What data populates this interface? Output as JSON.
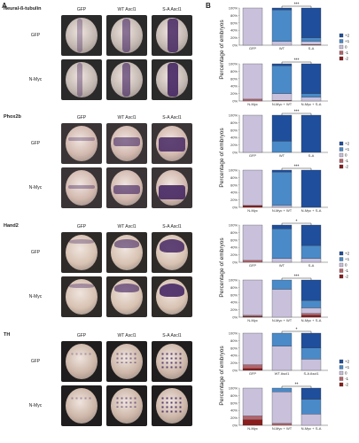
{
  "panel_a_label": "A",
  "panel_b_label": "B",
  "y_axis_label": "Percentage of embryos",
  "groups": [
    {
      "name": "Neural-ß-tubulin",
      "cols": [
        "GFP",
        "WT Ascl1",
        "S-A Ascl1"
      ],
      "rows": [
        "GFP",
        "N-Myc"
      ]
    },
    {
      "name": "Phox2b",
      "cols": [
        "GFP",
        "WT Ascl1",
        "S-A Ascl1"
      ],
      "rows": [
        "GFP",
        "N-Myc"
      ]
    },
    {
      "name": "Hand2",
      "cols": [
        "GFP",
        "WT Ascl1",
        "S-A Ascl1"
      ],
      "rows": [
        "GFP",
        "N-Myc"
      ]
    },
    {
      "name": "TH",
      "cols": [
        "GFP",
        "WT Ascl1",
        "S-A Ascl1"
      ],
      "rows": [
        "GFP",
        "N-Myc"
      ]
    }
  ],
  "legend_groups": [
    {
      "entries": [
        "+2",
        "+1",
        "0",
        "-1",
        "-2"
      ]
    },
    {
      "entries": [
        "+2",
        "+1",
        "0",
        "-1",
        "-2"
      ]
    },
    {
      "entries": [
        "+2",
        "+1",
        "0",
        "-1",
        "-2"
      ]
    },
    {
      "entries": [
        "+2",
        "+1",
        "0",
        "-1",
        "-2"
      ]
    }
  ],
  "colors": {
    "+2": "#1f4e9c",
    "+1": "#4a8ac8",
    "0": "#c9c0dc",
    "-1": "#b5636a",
    "-2": "#8a1d1d"
  },
  "chart_data": [
    {
      "type": "bar",
      "stacked": true,
      "categories": [
        "GFP",
        "WT",
        "S-A"
      ],
      "significance": "***",
      "ylim": [
        0,
        100
      ],
      "yticks": [
        "0%",
        "20%",
        "40%",
        "60%",
        "80%",
        "100%"
      ],
      "series": [
        {
          "name": "+2",
          "values": [
            0,
            5,
            80
          ]
        },
        {
          "name": "+1",
          "values": [
            0,
            85,
            10
          ]
        },
        {
          "name": "0",
          "values": [
            100,
            10,
            8
          ]
        },
        {
          "name": "-1",
          "values": [
            0,
            0,
            2
          ]
        },
        {
          "name": "-2",
          "values": [
            0,
            0,
            0
          ]
        }
      ]
    },
    {
      "type": "bar",
      "stacked": true,
      "categories": [
        "N-Myc",
        "N-Myc + WT",
        "N-Myc + S-A"
      ],
      "significance": "***",
      "ylim": [
        0,
        100
      ],
      "yticks": [
        "0%",
        "20%",
        "40%",
        "60%",
        "80%",
        "100%"
      ],
      "series": [
        {
          "name": "+2",
          "values": [
            0,
            5,
            80
          ]
        },
        {
          "name": "+1",
          "values": [
            0,
            75,
            10
          ]
        },
        {
          "name": "0",
          "values": [
            95,
            18,
            10
          ]
        },
        {
          "name": "-1",
          "values": [
            5,
            2,
            0
          ]
        },
        {
          "name": "-2",
          "values": [
            0,
            0,
            0
          ]
        }
      ]
    },
    {
      "type": "bar",
      "stacked": true,
      "categories": [
        "GFP",
        "WT",
        "S-A"
      ],
      "significance": "***",
      "ylim": [
        0,
        100
      ],
      "yticks": [
        "0%",
        "20%",
        "40%",
        "60%",
        "80%",
        "100%"
      ],
      "series": [
        {
          "name": "+2",
          "values": [
            0,
            70,
            100
          ]
        },
        {
          "name": "+1",
          "values": [
            0,
            30,
            0
          ]
        },
        {
          "name": "0",
          "values": [
            100,
            0,
            0
          ]
        },
        {
          "name": "-1",
          "values": [
            0,
            0,
            0
          ]
        },
        {
          "name": "-2",
          "values": [
            0,
            0,
            0
          ]
        }
      ]
    },
    {
      "type": "bar",
      "stacked": true,
      "categories": [
        "N-Myc",
        "N-Myc + WT",
        "N-Myc + S-A"
      ],
      "significance": "***",
      "ylim": [
        0,
        100
      ],
      "yticks": [
        "0%",
        "20%",
        "40%",
        "60%",
        "80%",
        "100%"
      ],
      "series": [
        {
          "name": "+2",
          "values": [
            0,
            5,
            100
          ]
        },
        {
          "name": "+1",
          "values": [
            0,
            90,
            0
          ]
        },
        {
          "name": "0",
          "values": [
            95,
            5,
            0
          ]
        },
        {
          "name": "-1",
          "values": [
            0,
            0,
            0
          ]
        },
        {
          "name": "-2",
          "values": [
            5,
            0,
            0
          ]
        }
      ]
    },
    {
      "type": "bar",
      "stacked": true,
      "categories": [
        "GFP",
        "WT",
        "S-A"
      ],
      "significance": "*",
      "ylim": [
        0,
        100
      ],
      "yticks": [
        "0%",
        "20%",
        "40%",
        "60%",
        "80%",
        "100%"
      ],
      "series": [
        {
          "name": "+2",
          "values": [
            0,
            10,
            55
          ]
        },
        {
          "name": "+1",
          "values": [
            0,
            80,
            35
          ]
        },
        {
          "name": "0",
          "values": [
            95,
            10,
            10
          ]
        },
        {
          "name": "-1",
          "values": [
            5,
            0,
            0
          ]
        },
        {
          "name": "-2",
          "values": [
            0,
            0,
            0
          ]
        }
      ]
    },
    {
      "type": "bar",
      "stacked": true,
      "categories": [
        "N-Myc",
        "N-Myc + WT",
        "N-Myc + S-A"
      ],
      "significance": "***",
      "ylim": [
        0,
        100
      ],
      "yticks": [
        "0%",
        "20%",
        "40%",
        "60%",
        "80%",
        "100%"
      ],
      "series": [
        {
          "name": "+2",
          "values": [
            0,
            0,
            55
          ]
        },
        {
          "name": "+1",
          "values": [
            0,
            25,
            20
          ]
        },
        {
          "name": "0",
          "values": [
            95,
            75,
            15
          ]
        },
        {
          "name": "-1",
          "values": [
            3,
            0,
            5
          ]
        },
        {
          "name": "-2",
          "values": [
            2,
            0,
            5
          ]
        }
      ]
    },
    {
      "type": "bar",
      "stacked": true,
      "categories": [
        "GFP",
        "WT Ascl1",
        "S-A Ascl1"
      ],
      "significance": "*",
      "ylim": [
        0,
        100
      ],
      "yticks": [
        "0%",
        "20%",
        "40%",
        "60%",
        "80%",
        "100%"
      ],
      "series": [
        {
          "name": "+2",
          "values": [
            0,
            0,
            40
          ]
        },
        {
          "name": "+1",
          "values": [
            0,
            35,
            30
          ]
        },
        {
          "name": "0",
          "values": [
            85,
            65,
            30
          ]
        },
        {
          "name": "-1",
          "values": [
            10,
            0,
            0
          ]
        },
        {
          "name": "-2",
          "values": [
            5,
            0,
            0
          ]
        }
      ]
    },
    {
      "type": "bar",
      "stacked": true,
      "categories": [
        "N-Myc",
        "N-Myc + WT",
        "N-Myc + S-A"
      ],
      "significance": "**",
      "ylim": [
        0,
        100
      ],
      "yticks": [
        "0%",
        "20%",
        "40%",
        "60%",
        "80%",
        "100%"
      ],
      "series": [
        {
          "name": "+2",
          "values": [
            0,
            0,
            30
          ]
        },
        {
          "name": "+1",
          "values": [
            0,
            10,
            40
          ]
        },
        {
          "name": "0",
          "values": [
            75,
            85,
            30
          ]
        },
        {
          "name": "-1",
          "values": [
            10,
            5,
            0
          ]
        },
        {
          "name": "-2",
          "values": [
            15,
            0,
            0
          ]
        }
      ]
    }
  ]
}
